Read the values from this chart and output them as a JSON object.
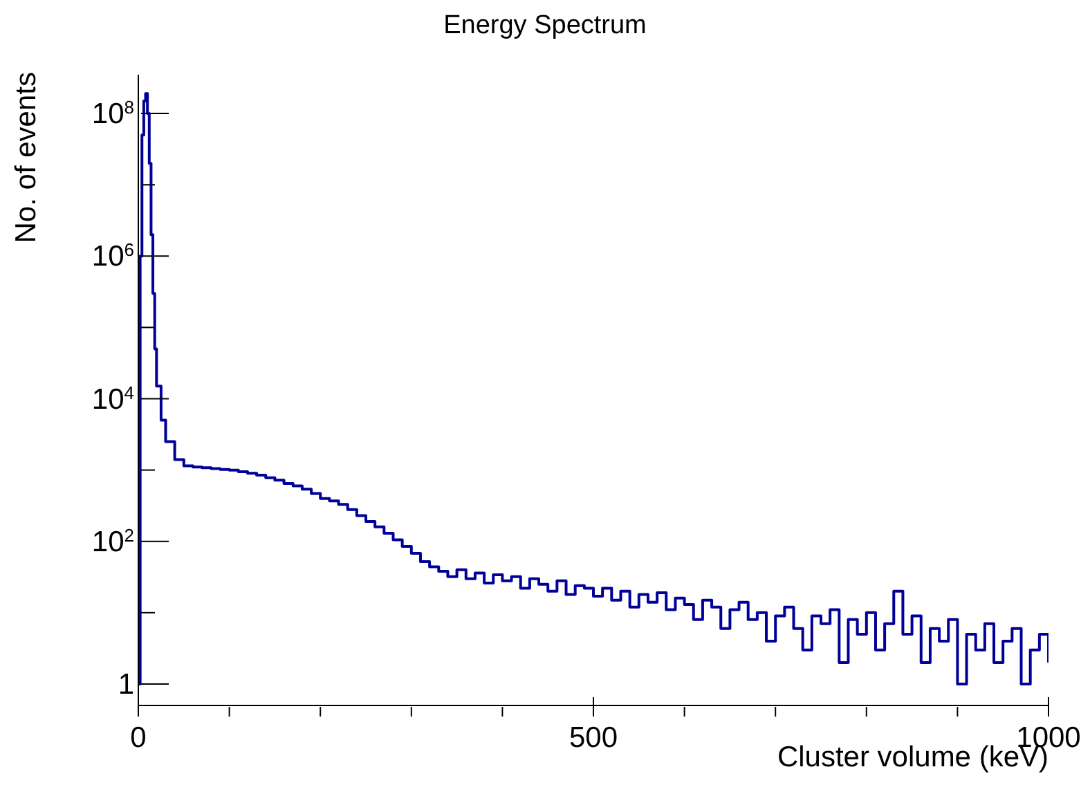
{
  "chart_data": {
    "type": "step",
    "title": "Energy Spectrum",
    "xlabel": "Cluster volume (keV)",
    "ylabel": "No. of events",
    "log": true,
    "xlim": [
      0,
      1000
    ],
    "ylim": [
      0.5,
      350000000
    ],
    "xticks": [
      0,
      {
        "value": 100,
        "label": null
      },
      {
        "value": 200,
        "label": null
      },
      {
        "value": 300,
        "label": null
      },
      {
        "value": 400,
        "label": null
      },
      500,
      {
        "value": 600,
        "label": null
      },
      {
        "value": 700,
        "label": null
      },
      {
        "value": 800,
        "label": null
      },
      {
        "value": 900,
        "label": null
      },
      1000
    ],
    "yticks": [
      1,
      {
        "value": 10,
        "label": null
      },
      {
        "value": 100,
        "label": "10$^{2}$"
      },
      {
        "value": 1000,
        "label": null
      },
      {
        "value": 10000,
        "label": "10$^{4}$"
      },
      {
        "value": 100000,
        "label": null
      },
      {
        "value": 1000000,
        "label": "10$^{6}$"
      },
      {
        "value": 10000000,
        "label": null
      },
      {
        "value": 100000000,
        "label": "10$^{8}$"
      }
    ],
    "x": [
      0,
      2,
      4,
      6,
      8,
      10,
      12,
      14,
      16,
      18,
      20,
      25,
      30,
      40,
      50,
      60,
      70,
      80,
      90,
      100,
      110,
      120,
      130,
      140,
      150,
      160,
      170,
      180,
      190,
      200,
      210,
      220,
      230,
      240,
      250,
      260,
      270,
      280,
      290,
      300,
      310,
      320,
      330,
      340,
      350,
      360,
      370,
      380,
      390,
      400,
      410,
      420,
      430,
      440,
      450,
      460,
      470,
      480,
      490,
      500,
      510,
      520,
      530,
      540,
      550,
      560,
      570,
      580,
      590,
      600,
      610,
      620,
      630,
      640,
      650,
      660,
      670,
      680,
      690,
      700,
      710,
      720,
      730,
      740,
      750,
      760,
      770,
      780,
      790,
      800,
      810,
      820,
      830,
      840,
      850,
      860,
      870,
      880,
      890,
      900,
      910,
      920,
      930,
      940,
      950,
      960,
      970,
      980,
      990,
      1000
    ],
    "series": [
      {
        "color": "#000099",
        "values": [
          1,
          1000000,
          50000000,
          150000000,
          190000000,
          100000000,
          20000000,
          2000000,
          300000,
          50000,
          15000,
          5000,
          2500,
          1400,
          1150,
          1100,
          1080,
          1050,
          1020,
          1000,
          950,
          900,
          850,
          780,
          720,
          650,
          600,
          540,
          470,
          400,
          370,
          330,
          280,
          230,
          190,
          160,
          130,
          105,
          85,
          68,
          52,
          44,
          38,
          32,
          40,
          30,
          36,
          26,
          34,
          28,
          32,
          22,
          30,
          25,
          20,
          28,
          18,
          24,
          22,
          17,
          22,
          15,
          20,
          12,
          18,
          14,
          19,
          11,
          16,
          13,
          8,
          15,
          12,
          6,
          11,
          14,
          8,
          10,
          4,
          9,
          12,
          6,
          3,
          9,
          7,
          11,
          2,
          8,
          5,
          10,
          3,
          7,
          20,
          5,
          9,
          2,
          6,
          4,
          8,
          1,
          5,
          3,
          7,
          2,
          4,
          6,
          1,
          3,
          5,
          2
        ]
      }
    ]
  }
}
